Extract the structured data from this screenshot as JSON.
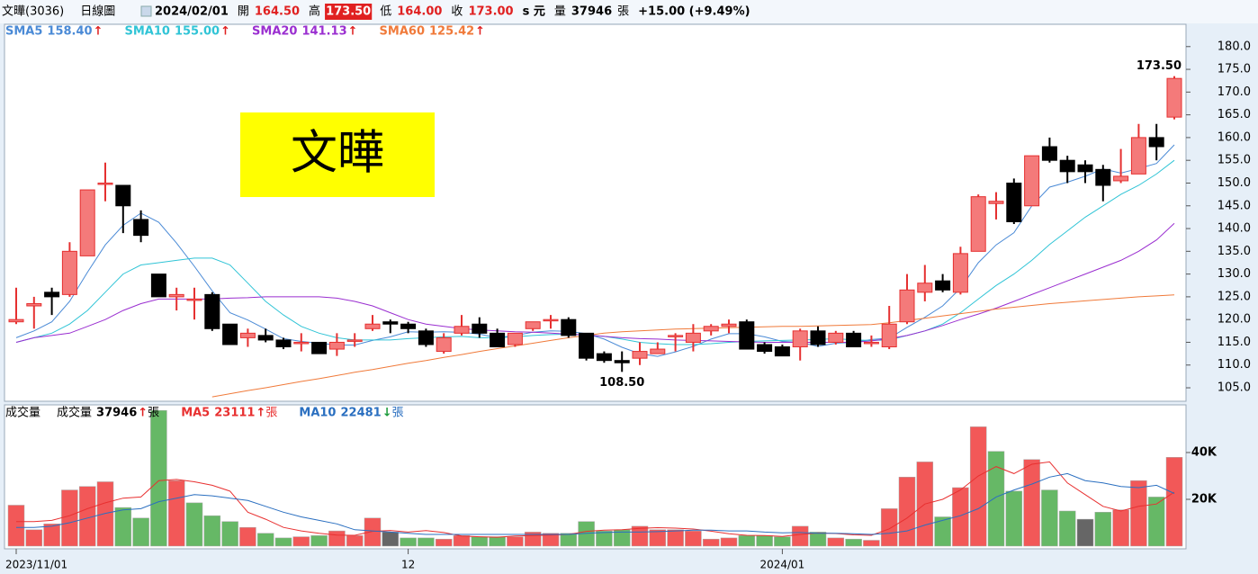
{
  "header": {
    "name": "文曄(3036)",
    "period": "日線圖",
    "date": "2024/02/01",
    "fields": [
      {
        "label": "開",
        "value": "164.50"
      },
      {
        "label": "高",
        "value": "173.50",
        "highlight": true
      },
      {
        "label": "低",
        "value": "164.00"
      },
      {
        "label": "收",
        "value": "173.00"
      }
    ],
    "unit": "s 元",
    "volume_label": "量",
    "volume": "37946",
    "volume_unit": "張",
    "change": "+15.00 (+9.49%)"
  },
  "chart_data": {
    "type": "candlestick",
    "categories": [
      "2023/11/01",
      null,
      null,
      null,
      null,
      null,
      null,
      null,
      null,
      null,
      null,
      null,
      null,
      null,
      null,
      null,
      null,
      null,
      null,
      null,
      null,
      null,
      "12",
      null,
      null,
      null,
      null,
      null,
      null,
      null,
      null,
      null,
      null,
      null,
      null,
      null,
      null,
      null,
      null,
      null,
      null,
      null,
      null,
      "2024/01",
      null,
      null,
      null,
      null,
      null,
      null,
      null,
      null,
      null,
      null,
      null,
      null,
      null,
      null,
      null,
      null,
      null,
      null,
      null,
      null,
      null,
      null
    ],
    "open": [
      119.5,
      123,
      126,
      125.5,
      134,
      150,
      149.5,
      142,
      130,
      125,
      124.5,
      125.5,
      119,
      116,
      116.5,
      115.5,
      115,
      115,
      113.5,
      115.5,
      118,
      119.5,
      119,
      117.5,
      113,
      117,
      119,
      117,
      114.5,
      118,
      120,
      120,
      117,
      112.5,
      111,
      111.5,
      112.5,
      116.5,
      115,
      117.5,
      118.5,
      119.5,
      114.5,
      114,
      114,
      117.5,
      115,
      117,
      115,
      114,
      119.5,
      126,
      128.5,
      126,
      135,
      145.5,
      150,
      145,
      158,
      155,
      154,
      153,
      150.5,
      152,
      160,
      164.5
    ],
    "high": [
      127,
      125,
      127,
      137,
      148.5,
      154.5,
      149.5,
      144,
      130,
      127,
      127,
      126,
      119,
      118,
      118,
      116,
      117,
      115,
      117,
      117,
      121,
      120,
      119.5,
      118,
      117,
      121,
      120.5,
      118,
      117,
      119.5,
      121,
      120.5,
      117,
      113,
      113,
      115,
      115,
      117,
      119,
      119,
      120,
      120,
      115,
      114.5,
      118,
      118.5,
      117.5,
      117.5,
      116.5,
      123,
      130,
      132,
      130,
      136,
      147.5,
      148,
      151,
      156,
      160,
      156,
      155,
      154,
      157.5,
      163,
      163,
      173.5
    ],
    "low": [
      119,
      118,
      121,
      125,
      134,
      146,
      139,
      137,
      125,
      122,
      120,
      117.5,
      114.5,
      114,
      115,
      113.5,
      113,
      112.5,
      112,
      114,
      117.5,
      117,
      117,
      114,
      112.5,
      116.5,
      116,
      114,
      114,
      117.5,
      118,
      116,
      111,
      110.5,
      108.5,
      110,
      112.5,
      113,
      113,
      116.5,
      117,
      113.5,
      112.5,
      112,
      111,
      114,
      114.5,
      114,
      114,
      113.5,
      119,
      124,
      126,
      125.5,
      135,
      142,
      141,
      145,
      154.5,
      150,
      150,
      146,
      150,
      152,
      155,
      164
    ],
    "close": [
      120,
      123.5,
      125,
      135,
      148.5,
      150,
      145,
      138.5,
      125,
      125.5,
      124.5,
      118,
      114.5,
      117,
      115.5,
      114,
      115,
      112.5,
      115,
      115.5,
      119,
      119,
      118,
      114.5,
      116,
      118.5,
      117,
      114,
      117,
      119.5,
      120,
      116.5,
      111.5,
      111,
      110.5,
      113,
      113.5,
      116.5,
      117,
      118.5,
      119,
      113.5,
      113,
      112,
      117.5,
      114.5,
      117,
      114,
      115,
      119,
      126.5,
      128,
      126.5,
      134.5,
      147,
      146,
      141.5,
      156,
      155,
      152.5,
      152.5,
      149.5,
      151.5,
      160,
      158,
      173
    ],
    "up_color": "#f47a7a",
    "up_edge": "#e53030",
    "down_color": "#000000",
    "ylim": [
      102,
      184.9
    ],
    "yticks": [
      {
        "value": 105,
        "label": "105.0"
      },
      {
        "value": 110,
        "label": "110.0"
      },
      {
        "value": 115,
        "label": "115.0"
      },
      {
        "value": 120,
        "label": "120.0"
      },
      {
        "value": 125,
        "label": "125.0"
      },
      {
        "value": 130,
        "label": "130.0"
      },
      {
        "value": 135,
        "label": "135.0"
      },
      {
        "value": 140,
        "label": "140.0"
      },
      {
        "value": 145,
        "label": "145.0"
      },
      {
        "value": 150,
        "label": "150.0"
      },
      {
        "value": 155,
        "label": "155.0"
      },
      {
        "value": 160,
        "label": "160.0"
      },
      {
        "value": 165,
        "label": "165.0"
      },
      {
        "value": 170,
        "label": "170.0"
      },
      {
        "value": 175,
        "label": "175.0"
      },
      {
        "value": 180,
        "label": "180.0"
      }
    ],
    "lines": [
      {
        "name": "SMA5",
        "color": "#4a8ad6",
        "value_label": "158.40",
        "arrow": "↑",
        "values": [
          116,
          117.5,
          119.5,
          124,
          130.4,
          136.4,
          140.7,
          143.4,
          141.4,
          136.8,
          131.7,
          126.3,
          121.5,
          119.9,
          117.9,
          115.8,
          115.2,
          114.8,
          114.4,
          114.4,
          115.4,
          116.2,
          117.3,
          117.2,
          117.3,
          117.2,
          116.8,
          116,
          116.5,
          117.2,
          117.5,
          117.4,
          116.9,
          115.7,
          113.9,
          112.5,
          111.9,
          112.9,
          114.1,
          115.7,
          116.9,
          116.9,
          116.2,
          115.2,
          115,
          114.1,
          114.8,
          115,
          115.6,
          115.9,
          118.3,
          120.5,
          123,
          126.9,
          132.5,
          136.4,
          139.1,
          145,
          149.1,
          150.2,
          151.5,
          153.1,
          152.2,
          153.2,
          154.3,
          158.4
        ]
      },
      {
        "name": "SMA10",
        "color": "#30c4d6",
        "value_label": "155.00",
        "arrow": "↑",
        "values": [
          115,
          116,
          117,
          119,
          122,
          126,
          130,
          132,
          132.5,
          133,
          133.5,
          133.5,
          132,
          128,
          124,
          121,
          118.5,
          117,
          116,
          115.5,
          115.5,
          115.5,
          115.8,
          116,
          116.2,
          116.3,
          116,
          116,
          116.2,
          116.5,
          116.7,
          116.8,
          116.6,
          116.3,
          115.7,
          115,
          114.7,
          114.5,
          114.5,
          114.7,
          115,
          115.2,
          115.3,
          115.4,
          115.5,
          115.6,
          115.8,
          115.5,
          115.4,
          115.5,
          116.5,
          117.5,
          119,
          121.5,
          124.5,
          127.5,
          130,
          133,
          136.5,
          139.5,
          142.5,
          145,
          147.5,
          149.5,
          152,
          155
        ]
      },
      {
        "name": "SMA20",
        "color": "#9a2ed0",
        "value_label": "141.13",
        "arrow": "↑",
        "values": [
          115,
          116,
          116.5,
          117,
          118.5,
          120,
          122,
          123.5,
          124.5,
          124.5,
          124.5,
          124.5,
          124.7,
          124.8,
          125,
          125,
          125,
          125,
          124.7,
          124,
          123,
          121.5,
          120,
          119,
          118.5,
          118,
          117.7,
          117.5,
          117.3,
          117.2,
          117,
          116.8,
          116.6,
          116.3,
          116,
          115.8,
          115.7,
          115.5,
          115.4,
          115.3,
          115.2,
          115.1,
          115,
          115,
          115,
          115,
          115,
          115,
          115.3,
          115.8,
          116.5,
          117.5,
          118.7,
          120,
          121.2,
          122.5,
          124,
          125.5,
          127,
          128.5,
          130,
          131.5,
          133,
          135,
          137.5,
          141.13
        ]
      },
      {
        "name": "SMA60",
        "color": "#f07a3a",
        "value_label": "125.42",
        "arrow": "↑",
        "values": [
          null,
          null,
          null,
          null,
          null,
          null,
          null,
          null,
          null,
          null,
          null,
          103,
          103.7,
          104.4,
          105,
          105.7,
          106.4,
          107,
          107.7,
          108.4,
          109,
          109.7,
          110.4,
          111,
          111.7,
          112.3,
          113,
          113.6,
          114.2,
          114.8,
          115.4,
          116,
          116.5,
          117,
          117.3,
          117.5,
          117.7,
          117.9,
          118,
          118.1,
          118.2,
          118.3,
          118.4,
          118.5,
          118.5,
          118.6,
          118.7,
          118.8,
          118.9,
          119.3,
          119.8,
          120.3,
          120.8,
          121.3,
          121.8,
          122.3,
          122.7,
          123.1,
          123.5,
          123.8,
          124.1,
          124.4,
          124.7,
          125,
          125.2,
          125.42
        ]
      }
    ],
    "annotations": [
      {
        "kind": "high",
        "value": 173.5,
        "label": "173.50"
      },
      {
        "kind": "low",
        "value": 108.5,
        "label": "108.50"
      }
    ],
    "label_box": "文曄",
    "volume": {
      "title": "成交量",
      "name": "成交量",
      "arrow": "↑",
      "unit": "張",
      "up_color": "#f25858",
      "down_color": "#66b866",
      "flat_color": "#666666",
      "values": [
        17500,
        7000,
        9500,
        24000,
        25500,
        27500,
        16500,
        12000,
        58000,
        28000,
        18500,
        13000,
        10500,
        8000,
        5500,
        3500,
        4000,
        4500,
        6500,
        4500,
        12000,
        6000,
        3500,
        3500,
        3000,
        4500,
        4000,
        4000,
        4000,
        6000,
        5500,
        5500,
        10500,
        6500,
        7000,
        8500,
        7000,
        7000,
        6500,
        3000,
        3500,
        4500,
        4500,
        4000,
        8500,
        6000,
        3500,
        3000,
        2500,
        16000,
        29500,
        36000,
        12500,
        25000,
        51000,
        40500,
        23500,
        37000,
        24000,
        15000,
        11500,
        14500,
        15500,
        28000,
        21000,
        37946
      ],
      "ylim": [
        0,
        59600
      ],
      "yticks": [
        {
          "value": 20000,
          "label": "20K"
        },
        {
          "value": 40000,
          "label": "40K"
        }
      ],
      "lines": [
        {
          "name": "MA5",
          "color": "#e83030",
          "arrow": "↑",
          "unit": "張",
          "values": [
            10500,
            10500,
            11000,
            13000,
            16000,
            18500,
            20500,
            21000,
            28000,
            28500,
            27500,
            26000,
            23500,
            14500,
            11500,
            8000,
            6500,
            5500,
            4700,
            4600,
            6300,
            6700,
            6000,
            6600,
            5800,
            4300,
            4000,
            3800,
            4300,
            4500,
            4700,
            5000,
            6300,
            6800,
            7000,
            7600,
            7900,
            7700,
            7300,
            6400,
            5300,
            4600,
            4500,
            4100,
            5000,
            5600,
            5400,
            4800,
            4600,
            7400,
            12000,
            18000,
            20000,
            24000,
            30000,
            34000,
            31000,
            35000,
            36000,
            27000,
            22000,
            17000,
            15000,
            17000,
            18000,
            23111
          ]
        },
        {
          "name": "MA10",
          "color": "#2a6fc0",
          "arrow": "↓",
          "unit": "張",
          "values": [
            8000,
            8000,
            8500,
            10000,
            12000,
            14000,
            15500,
            16000,
            19000,
            20500,
            22000,
            21500,
            20500,
            19500,
            17000,
            14500,
            12500,
            11000,
            9500,
            7000,
            6500,
            6000,
            5500,
            5000,
            5000,
            5000,
            5000,
            5000,
            5000,
            5000,
            5000,
            5000,
            5500,
            5800,
            6000,
            6000,
            6200,
            6500,
            6800,
            6800,
            6500,
            6500,
            6000,
            5700,
            5800,
            5500,
            5500,
            5300,
            5000,
            5500,
            6500,
            9000,
            11000,
            13000,
            16000,
            21000,
            24000,
            26500,
            29500,
            31000,
            28000,
            27000,
            25500,
            25000,
            26000,
            22481
          ]
        }
      ]
    }
  }
}
